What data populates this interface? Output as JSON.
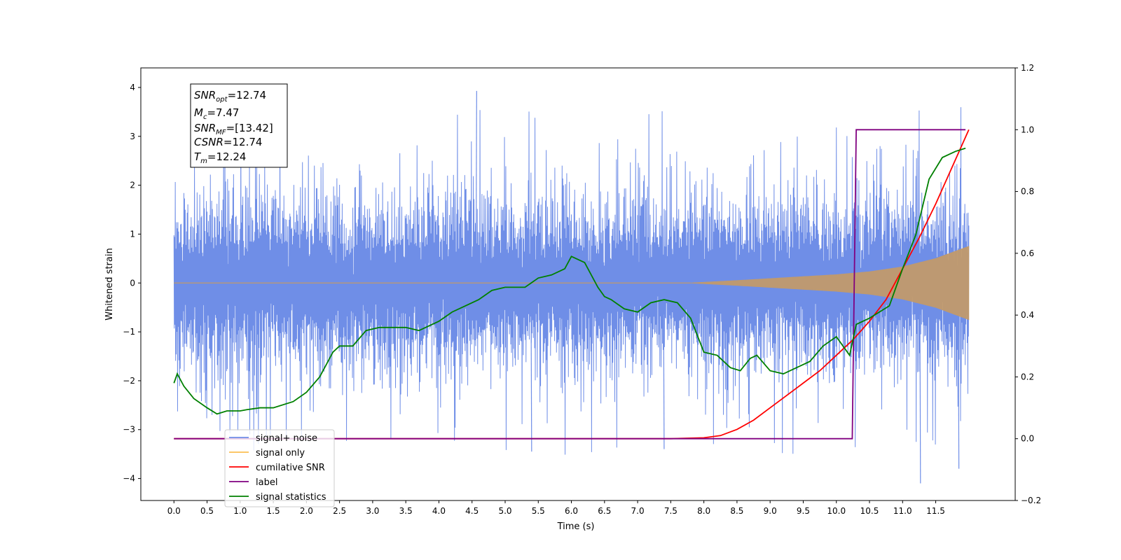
{
  "chart_data": {
    "type": "line",
    "xlabel": "Time (s)",
    "ylabel": "Whitened strain",
    "xlim": [
      -0.5,
      12.7
    ],
    "ylim": [
      -4.45,
      4.4
    ],
    "y2lim": [
      -0.2,
      1.2
    ],
    "x_ticks": [
      0.0,
      0.5,
      1.0,
      1.5,
      2.0,
      2.5,
      3.0,
      3.5,
      4.0,
      4.5,
      5.0,
      5.5,
      6.0,
      6.5,
      7.0,
      7.5,
      8.0,
      8.5,
      9.0,
      9.5,
      10.0,
      10.5,
      11.0,
      11.5
    ],
    "x_tick_labels": [
      "0.0",
      "0.5",
      "1.0",
      "1.5",
      "2.0",
      "2.5",
      "3.0",
      "3.5",
      "4.0",
      "4.5",
      "5.0",
      "5.5",
      "6.0",
      "6.5",
      "7.0",
      "7.5",
      "8.0",
      "8.5",
      "9.0",
      "9.5",
      "10.0",
      "10.5",
      "11.0",
      "11.5"
    ],
    "y_ticks": [
      -4,
      -3,
      -2,
      -1,
      0,
      1,
      2,
      3,
      4
    ],
    "y_tick_labels": [
      "−4",
      "−3",
      "−2",
      "−1",
      "0",
      "1",
      "2",
      "3",
      "4"
    ],
    "y2_ticks": [
      -0.2,
      0.0,
      0.2,
      0.4,
      0.6,
      0.8,
      1.0,
      1.2
    ],
    "y2_tick_labels": [
      "−0.2",
      "0.0",
      "0.2",
      "0.4",
      "0.6",
      "0.8",
      "1.0",
      "1.2"
    ],
    "grid": false,
    "legend_position": "bottom-left",
    "noise_series": {
      "name": "signal+ noise",
      "t_start": 0.0,
      "t_end": 12.0,
      "band_lower": -1.5,
      "band_upper": 1.4,
      "peak_min": -4.1,
      "peak_max": 3.93
    },
    "signal_series": {
      "name": "signal only",
      "t_start": 0.0,
      "t_end": 12.0,
      "onset": 7.8,
      "amplitude_points": [
        [
          7.8,
          0.0
        ],
        [
          8.5,
          0.05
        ],
        [
          9.0,
          0.09
        ],
        [
          9.5,
          0.13
        ],
        [
          10.0,
          0.17
        ],
        [
          10.5,
          0.23
        ],
        [
          11.0,
          0.33
        ],
        [
          11.5,
          0.5
        ],
        [
          12.0,
          0.75
        ]
      ]
    },
    "series": [
      {
        "name": "cumilative SNR",
        "axis": "right",
        "points": [
          [
            0.0,
            0.0
          ],
          [
            7.5,
            0.0
          ],
          [
            8.0,
            0.003
          ],
          [
            8.25,
            0.01
          ],
          [
            8.5,
            0.03
          ],
          [
            8.75,
            0.06
          ],
          [
            9.0,
            0.1
          ],
          [
            9.25,
            0.14
          ],
          [
            9.5,
            0.18
          ],
          [
            9.75,
            0.22
          ],
          [
            10.0,
            0.27
          ],
          [
            10.25,
            0.32
          ],
          [
            10.5,
            0.38
          ],
          [
            10.75,
            0.45
          ],
          [
            11.0,
            0.55
          ],
          [
            11.25,
            0.65
          ],
          [
            11.5,
            0.76
          ],
          [
            11.75,
            0.88
          ],
          [
            12.0,
            1.0
          ]
        ]
      },
      {
        "name": "label",
        "axis": "right",
        "points": [
          [
            0.0,
            0.0
          ],
          [
            10.24,
            0.0
          ],
          [
            10.3,
            1.0
          ],
          [
            11.95,
            1.0
          ]
        ]
      },
      {
        "name": "signal statistics",
        "axis": "right",
        "points": [
          [
            0.0,
            0.18
          ],
          [
            0.05,
            0.21
          ],
          [
            0.15,
            0.17
          ],
          [
            0.3,
            0.13
          ],
          [
            0.5,
            0.1
          ],
          [
            0.65,
            0.08
          ],
          [
            0.8,
            0.09
          ],
          [
            1.0,
            0.09
          ],
          [
            1.1,
            0.094
          ],
          [
            1.3,
            0.1
          ],
          [
            1.5,
            0.1
          ],
          [
            1.8,
            0.12
          ],
          [
            2.0,
            0.15
          ],
          [
            2.2,
            0.2
          ],
          [
            2.4,
            0.28
          ],
          [
            2.5,
            0.3
          ],
          [
            2.7,
            0.3
          ],
          [
            2.9,
            0.35
          ],
          [
            3.1,
            0.36
          ],
          [
            3.5,
            0.36
          ],
          [
            3.7,
            0.35
          ],
          [
            4.0,
            0.38
          ],
          [
            4.2,
            0.41
          ],
          [
            4.4,
            0.43
          ],
          [
            4.6,
            0.45
          ],
          [
            4.8,
            0.48
          ],
          [
            5.0,
            0.49
          ],
          [
            5.3,
            0.49
          ],
          [
            5.5,
            0.52
          ],
          [
            5.7,
            0.53
          ],
          [
            5.9,
            0.55
          ],
          [
            6.0,
            0.59
          ],
          [
            6.2,
            0.57
          ],
          [
            6.4,
            0.49
          ],
          [
            6.5,
            0.46
          ],
          [
            6.6,
            0.45
          ],
          [
            6.8,
            0.42
          ],
          [
            7.0,
            0.41
          ],
          [
            7.2,
            0.44
          ],
          [
            7.4,
            0.45
          ],
          [
            7.6,
            0.44
          ],
          [
            7.8,
            0.39
          ],
          [
            8.0,
            0.28
          ],
          [
            8.2,
            0.27
          ],
          [
            8.4,
            0.23
          ],
          [
            8.55,
            0.22
          ],
          [
            8.7,
            0.26
          ],
          [
            8.8,
            0.27
          ],
          [
            9.0,
            0.22
          ],
          [
            9.2,
            0.21
          ],
          [
            9.4,
            0.23
          ],
          [
            9.6,
            0.25
          ],
          [
            9.8,
            0.3
          ],
          [
            10.0,
            0.33
          ],
          [
            10.2,
            0.27
          ],
          [
            10.3,
            0.37
          ],
          [
            10.5,
            0.39
          ],
          [
            10.8,
            0.43
          ],
          [
            11.0,
            0.55
          ],
          [
            11.2,
            0.66
          ],
          [
            11.4,
            0.84
          ],
          [
            11.6,
            0.91
          ],
          [
            11.8,
            0.93
          ],
          [
            11.95,
            0.94
          ]
        ]
      }
    ],
    "legend": [
      {
        "label": "signal+ noise",
        "color": "#6f8ee7"
      },
      {
        "label": "signal only",
        "color": "#fbbf52"
      },
      {
        "label": "cumilative SNR",
        "color": "#ff0000"
      },
      {
        "label": "label",
        "color": "#800080"
      },
      {
        "label": "signal statistics",
        "color": "#008000"
      }
    ],
    "colors": {
      "noise": "#6f8ee7",
      "signal": "#c19a6b",
      "snr": "#ff0000",
      "label": "#800080",
      "stats": "#008000"
    },
    "info_box": {
      "snr_opt": {
        "base": "SNR",
        "sub": "opt",
        "value": "=12.74"
      },
      "mc": {
        "base": "M",
        "sub": "c",
        "value": "=7.47"
      },
      "snr_mf": {
        "base": "SNR",
        "sub": "MF",
        "value": "=[13.42]"
      },
      "csnr": {
        "base": "CSNR",
        "value": "=12.74"
      },
      "tm": {
        "base": "T",
        "sub": "m",
        "value": "=12.24"
      }
    }
  }
}
